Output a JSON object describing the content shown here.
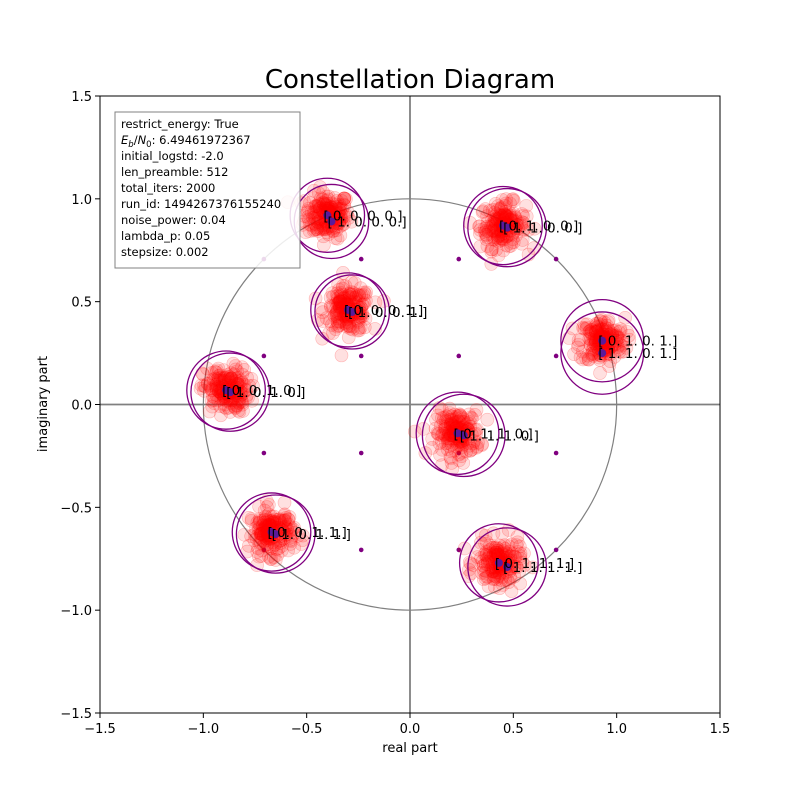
{
  "chart_data": {
    "type": "scatter",
    "title": "Constellation Diagram",
    "xlabel": "real part",
    "ylabel": "imaginary part",
    "xlim": [
      -1.5,
      1.5
    ],
    "ylim": [
      -1.5,
      1.5
    ],
    "x_ticks": [
      "−1.5",
      "−1.0",
      "−0.5",
      "0.0",
      "0.5",
      "1.0",
      "1.5"
    ],
    "y_ticks": [
      "−1.5",
      "−1.0",
      "−0.5",
      "0.0",
      "0.5",
      "1.0",
      "1.5"
    ],
    "x_tick_values": [
      -1.5,
      -1.0,
      -0.5,
      0.0,
      0.5,
      1.0,
      1.5
    ],
    "y_tick_values": [
      -1.5,
      -1.0,
      -0.5,
      0.0,
      0.5,
      1.0,
      1.5
    ],
    "unit_circle_radius": 1.0,
    "grid": false,
    "colors": {
      "noise_cloud": "#ff0000",
      "centroid": "#5a1a9a",
      "ring": "#800080",
      "reference": "#800080",
      "unit_circle": "#808080",
      "axes_lines": "#808080"
    },
    "info_box": {
      "placement": "top-left",
      "lines": [
        "restrict_energy: True",
        "E_b/N_0: 6.49461972367",
        "initial_logstd: -2.0",
        "len_preamble: 512",
        "total_iters: 2000",
        "run_id: 1494267376155240",
        "noise_power: 0.04",
        "lambda_p: 0.05",
        "stepsize: 0.002"
      ]
    },
    "clusters": [
      {
        "centers": [
          [
            -0.4,
            0.92
          ],
          [
            -0.38,
            0.89
          ]
        ],
        "labels": [
          "[ 0.  0.  0.  0.]",
          "[ 1.  0.  0.  0.]"
        ],
        "ring_radius": 0.18
      },
      {
        "centers": [
          [
            0.45,
            0.87
          ],
          [
            0.47,
            0.86
          ]
        ],
        "labels": [
          "[ 0.  1.  0.  0.]",
          "[ 1.  1.  0.  0.]"
        ],
        "ring_radius": 0.19
      },
      {
        "centers": [
          [
            -0.3,
            0.46
          ],
          [
            -0.28,
            0.45
          ]
        ],
        "labels": [
          "[ 0.  0.  0.  1.]",
          "[ 1.  0.  0.  1.]"
        ],
        "ring_radius": 0.18
      },
      {
        "centers": [
          [
            0.93,
            0.31
          ],
          [
            0.93,
            0.25
          ]
        ],
        "labels": [
          "[ 0.  1.  0.  1.]",
          "[ 1.  1.  0.  1.]"
        ],
        "ring_radius": 0.2
      },
      {
        "centers": [
          [
            -0.89,
            0.07
          ],
          [
            -0.87,
            0.06
          ]
        ],
        "labels": [
          "[ 0.  0.  1.  0.]",
          "[ 1.  0.  1.  0.]"
        ],
        "ring_radius": 0.19
      },
      {
        "centers": [
          [
            0.23,
            -0.14
          ],
          [
            0.26,
            -0.15
          ]
        ],
        "labels": [
          "[ 0.  1.  1.  0.]",
          "[ 1.  1.  1.  0.]"
        ],
        "ring_radius": 0.2
      },
      {
        "centers": [
          [
            -0.67,
            -0.62
          ],
          [
            -0.65,
            -0.63
          ]
        ],
        "labels": [
          "[ 0.  0.  1.  1.]",
          "[ 1.  0.  1.  1.]"
        ],
        "ring_radius": 0.19
      },
      {
        "centers": [
          [
            0.43,
            -0.77
          ],
          [
            0.47,
            -0.79
          ]
        ],
        "labels": [
          "[ 0.  1.  1.  1.]",
          "[ 1.  1.  1.  1.]"
        ],
        "ring_radius": 0.19
      }
    ],
    "reference_points": [
      [
        -0.707,
        0.707
      ],
      [
        -0.236,
        0.707
      ],
      [
        0.236,
        0.707
      ],
      [
        0.707,
        0.707
      ],
      [
        -0.707,
        0.236
      ],
      [
        -0.236,
        0.236
      ],
      [
        0.236,
        0.236
      ],
      [
        0.707,
        0.236
      ],
      [
        -0.707,
        -0.236
      ],
      [
        -0.236,
        -0.236
      ],
      [
        0.236,
        -0.236
      ],
      [
        0.707,
        -0.236
      ],
      [
        -0.707,
        -0.707
      ],
      [
        -0.236,
        -0.707
      ],
      [
        0.236,
        -0.707
      ],
      [
        0.707,
        -0.707
      ]
    ]
  }
}
